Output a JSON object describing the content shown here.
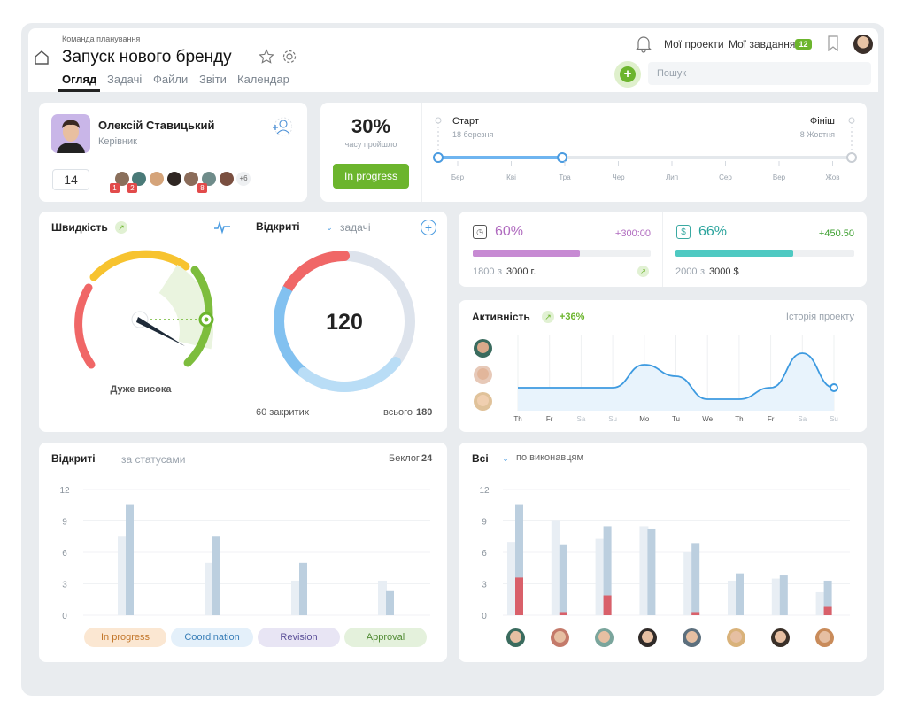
{
  "header": {
    "team": "Команда планування",
    "title": "Запуск нового бренду",
    "tabs": [
      "Огляд",
      "Задачі",
      "Файли",
      "Звіти",
      "Календар"
    ],
    "my_projects": "Мої проекти",
    "my_tasks": "Мої завдання",
    "tasks_count": "12",
    "search_placeholder": "Пошук"
  },
  "manager": {
    "name": "Олексій Ставицький",
    "role": "Керівник",
    "count": "14",
    "more": "+6",
    "badges": [
      "1",
      "2",
      "8"
    ]
  },
  "progress": {
    "percent": "30%",
    "caption": "часу пройшло",
    "status": "In progress",
    "start_label": "Старт",
    "start_date": "18 березня",
    "finish_label": "Фініш",
    "finish_date": "8 Жовтня",
    "months": [
      "Бер",
      "Кві",
      "Тра",
      "Чер",
      "Лип",
      "Сер",
      "Вер",
      "Жов"
    ],
    "fraction": 0.3
  },
  "speed": {
    "title": "Швидкість",
    "level": "Дуже висока"
  },
  "open": {
    "title": "Відкриті",
    "filter": "задачі",
    "value": "120",
    "closed_label": "60 закритих",
    "total_label": "всього",
    "total": "180"
  },
  "kpi1": {
    "percent": "60%",
    "delta": "+300:00",
    "done": "1800",
    "sep": "з",
    "total": "3000 г.",
    "fraction": 0.6,
    "color": "#c78ad3"
  },
  "kpi2": {
    "percent": "66%",
    "delta": "+450.50",
    "done": "2000",
    "sep": "з",
    "total": "3000 $",
    "fraction": 0.66,
    "color": "#4ec9c2"
  },
  "activity": {
    "title": "Активність",
    "delta": "+36%",
    "history": "Історія проекту",
    "days": [
      "Th",
      "Fr",
      "Sa",
      "Su",
      "Mo",
      "Tu",
      "We",
      "Th",
      "Fr",
      "Sa",
      "Su"
    ],
    "values": [
      4,
      4,
      4,
      4,
      8,
      6,
      2,
      2,
      4,
      10,
      4
    ]
  },
  "chart_left": {
    "title": "Відкриті",
    "subtitle": "за статусами",
    "backlog_label": "Беклог",
    "backlog": "24"
  },
  "chart_right": {
    "title": "Всі",
    "filter": "по виконавцям"
  },
  "chart_data": [
    {
      "type": "bar",
      "categories": [
        "In progress",
        "Coordination",
        "Revision",
        "Approval"
      ],
      "ylim": [
        0,
        12
      ],
      "yticks": [
        "12",
        "9",
        "6",
        "3",
        "0"
      ],
      "series": [
        {
          "values": [
            7.5,
            5,
            3.3,
            3.3
          ]
        },
        {
          "values": [
            10.6,
            7.5,
            5,
            2.3
          ]
        }
      ],
      "colors": {
        "In progress": "#fbe7d2",
        "Coordination": "#e4f0fa",
        "Revision": "#e8e5f4",
        "Approval": "#e4f1dc"
      },
      "label_colors": {
        "In progress": "#c2762a",
        "Coordination": "#3a7fb8",
        "Revision": "#5b4f98",
        "Approval": "#4f8a32"
      }
    },
    {
      "type": "bar",
      "ylim": [
        0,
        12
      ],
      "yticks": [
        "12",
        "9",
        "6",
        "3",
        "0"
      ],
      "categories": [
        "1",
        "2",
        "3",
        "4",
        "5",
        "6",
        "7",
        "8"
      ],
      "series": [
        {
          "values": [
            7,
            9,
            7.3,
            8.5,
            6,
            3.3,
            3.5,
            2.2
          ]
        },
        {
          "values": [
            10.6,
            6.7,
            8.5,
            8.2,
            6.9,
            4,
            3.8,
            3.3
          ]
        },
        {
          "values": [
            3.6,
            0.3,
            1.9,
            0,
            0.3,
            0,
            0,
            0.8
          ]
        }
      ]
    }
  ]
}
